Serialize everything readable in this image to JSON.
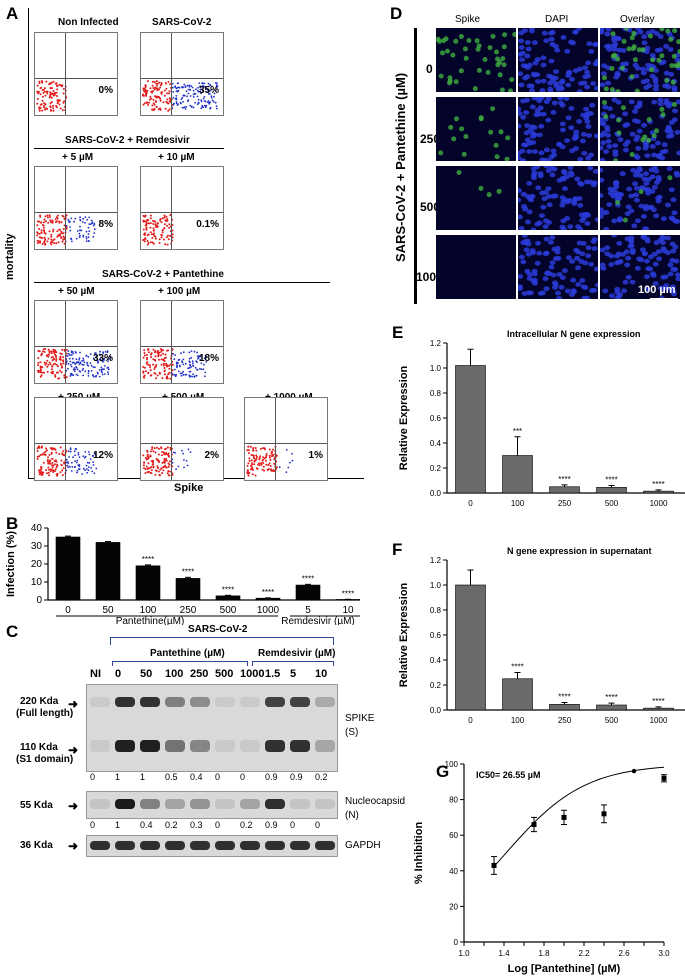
{
  "panel_a": {
    "label": "A",
    "y_axis": "mortality",
    "x_axis": "Spike",
    "plots": [
      {
        "title": "Non Infected",
        "pct": "0%",
        "blue": 0
      },
      {
        "title": "SARS-CoV-2",
        "pct": "35%",
        "blue": 1
      },
      {
        "title": "+ 5 µM",
        "pct": "8%",
        "blue": 0.4
      },
      {
        "title": "+ 10 µM",
        "pct": "0.1%",
        "blue": 0
      },
      {
        "title": "+ 50 µM",
        "pct": "33%",
        "blue": 0.95
      },
      {
        "title": "+ 100 µM",
        "pct": "18%",
        "blue": 0.6
      },
      {
        "title": "+ 250 µM",
        "pct": "12%",
        "blue": 0.45
      },
      {
        "title": "+ 500 µM",
        "pct": "2%",
        "blue": 0.1
      },
      {
        "title": "+ 1000 µM",
        "pct": "1%",
        "blue": 0.05
      }
    ],
    "group_remdesivir": "SARS-CoV-2 + Remdesivir",
    "group_pantethine": "SARS-CoV-2 + Pantethine"
  },
  "panel_b": {
    "label": "B",
    "chart_data": {
      "type": "bar",
      "ylabel": "Infection (%)",
      "ylim": [
        0,
        40
      ],
      "yticks": [
        "0",
        "10",
        "20",
        "30",
        "40"
      ],
      "categories": [
        "0",
        "50",
        "100",
        "250",
        "500",
        "1000",
        "5",
        "10"
      ],
      "values": [
        35,
        32,
        19,
        12,
        2.3,
        1,
        8.3,
        0.3
      ],
      "errors": [
        0.5,
        0.5,
        0.5,
        0.6,
        0.3,
        0.2,
        0.4,
        0.1
      ],
      "significance": [
        "",
        "",
        "****",
        "****",
        "****",
        "****",
        "****",
        "****"
      ],
      "group_labels": [
        "Pantethine(µM)",
        "Remdesivir (µM)"
      ]
    }
  },
  "panel_c": {
    "label": "C",
    "virus": "SARS-CoV-2",
    "group1": "Pantethine (µM)",
    "group2": "Remdesivir (µM)",
    "lanes": [
      "NI",
      "0",
      "50",
      "100",
      "250",
      "500",
      "1000",
      "1.5",
      "5",
      "10"
    ],
    "size1": "220 Kda",
    "size1b": "(Full length)",
    "size2": "110 Kda",
    "size2b": "(S1 domain)",
    "size3": "55 Kda",
    "size4": "36 Kda",
    "spike_label": "SPIKE",
    "spike_label2": "(S)",
    "n_label": "Nucleocapsid",
    "n_label2": "(N)",
    "gapdh_label": "GAPDH",
    "spike_quant": [
      "0",
      "1",
      "1",
      "0.5",
      "0.4",
      "0",
      "0",
      "0.9",
      "0.9",
      "0.2"
    ],
    "n_quant": [
      "0",
      "1",
      "0.4",
      "0.2",
      "0.3",
      "0",
      "0.2",
      "0.9",
      "0",
      "0"
    ]
  },
  "panel_d": {
    "label": "D",
    "cols": [
      "Spike",
      "DAPI",
      "Overlay"
    ],
    "rows": [
      "0",
      "250",
      "500",
      "1000"
    ],
    "side_label": "SARS-CoV-2 + Pantethine (µM)",
    "scale": "100 µm"
  },
  "panel_e": {
    "label": "E",
    "chart_data": {
      "type": "bar",
      "title": "Intracellular N gene expression",
      "ylabel": "Relative Expression",
      "xlabel": "Pantethine (µM)",
      "ylim": [
        0,
        1.2
      ],
      "yticks": [
        "0.0",
        "0.2",
        "0.4",
        "0.6",
        "0.8",
        "1.0",
        "1.2"
      ],
      "categories": [
        "0",
        "100",
        "250",
        "500",
        "1000"
      ],
      "values": [
        1.02,
        0.3,
        0.05,
        0.045,
        0.015
      ],
      "errors": [
        0.13,
        0.15,
        0.015,
        0.015,
        0.01
      ],
      "significance": [
        "",
        "***",
        "****",
        "****",
        "****"
      ]
    }
  },
  "panel_f": {
    "label": "F",
    "chart_data": {
      "type": "bar",
      "title": "N gene expression in supernatant",
      "ylabel": "Relative Expression",
      "xlabel": "Pantethine (µM)",
      "ylim": [
        0,
        1.2
      ],
      "yticks": [
        "0.0",
        "0.2",
        "0.4",
        "0.6",
        "0.8",
        "1.0",
        "1.2"
      ],
      "categories": [
        "0",
        "100",
        "250",
        "500",
        "1000"
      ],
      "values": [
        1.0,
        0.25,
        0.045,
        0.04,
        0.015
      ],
      "errors": [
        0.12,
        0.05,
        0.015,
        0.015,
        0.01
      ],
      "significance": [
        "",
        "****",
        "****",
        "****",
        "****"
      ]
    }
  },
  "panel_g": {
    "label": "G",
    "chart_data": {
      "type": "scatter",
      "annotation": "IC50= 26.55 µM",
      "ylabel": "% Inhibition",
      "xlabel": "Log [Pantethine] (µM)",
      "xlim": [
        1.0,
        3.0
      ],
      "ylim": [
        0,
        100
      ],
      "xticks": [
        "1.0",
        "1.2",
        "1.4",
        "1.6",
        "1.8",
        "2.0",
        "2.2",
        "2.4",
        "2.6",
        "2.8",
        "3.0"
      ],
      "yticks": [
        "0",
        "20",
        "40",
        "60",
        "80",
        "100"
      ],
      "x": [
        1.3,
        1.7,
        2.0,
        2.4,
        2.7,
        3.0
      ],
      "y": [
        43,
        66,
        70,
        72,
        96,
        92
      ],
      "errors": [
        5,
        4,
        4,
        5,
        0,
        2
      ]
    }
  }
}
